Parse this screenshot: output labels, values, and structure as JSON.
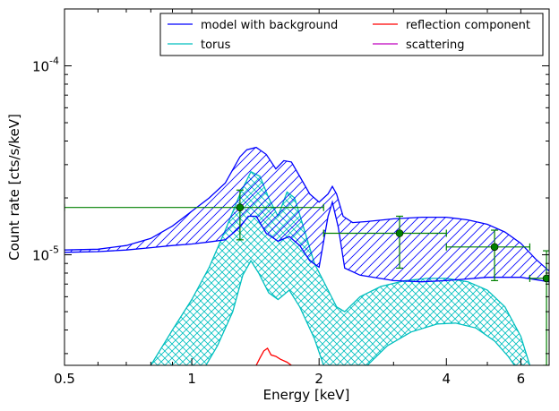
{
  "chart_data": {
    "type": "line",
    "title": "",
    "xlabel": "Energy [keV]",
    "ylabel": "Count rate [cts/s/keV]",
    "xscale": "log",
    "yscale": "log",
    "xlim": [
      0.5,
      7.0
    ],
    "ylim": [
      2.6e-06,
      0.0002
    ],
    "grid": false,
    "legend_position": "top-right",
    "x_ticks": [
      {
        "value": 0.5,
        "label": "0.5"
      },
      {
        "value": 1,
        "label": "1"
      },
      {
        "value": 2,
        "label": "2"
      },
      {
        "value": 4,
        "label": "4"
      },
      {
        "value": 6,
        "label": "6"
      }
    ],
    "y_ticks": [
      {
        "value": 1e-05,
        "base": "10",
        "exp": "-5"
      },
      {
        "value": 0.0001,
        "base": "10",
        "exp": "-4"
      }
    ],
    "series": [
      {
        "name": "model with background",
        "color": "#0000ff",
        "style": "band-hatched",
        "upper": [
          [
            0.5,
            1.06e-05
          ],
          [
            0.6,
            1.07e-05
          ],
          [
            0.7,
            1.12e-05
          ],
          [
            0.8,
            1.22e-05
          ],
          [
            0.9,
            1.42e-05
          ],
          [
            1.0,
            1.7e-05
          ],
          [
            1.1,
            2e-05
          ],
          [
            1.2,
            2.4e-05
          ],
          [
            1.3,
            3.3e-05
          ],
          [
            1.35,
            3.6e-05
          ],
          [
            1.42,
            3.7e-05
          ],
          [
            1.5,
            3.4e-05
          ],
          [
            1.58,
            2.85e-05
          ],
          [
            1.65,
            3.15e-05
          ],
          [
            1.72,
            3.1e-05
          ],
          [
            1.8,
            2.6e-05
          ],
          [
            1.9,
            2.1e-05
          ],
          [
            2.0,
            1.9e-05
          ],
          [
            2.1,
            2.1e-05
          ],
          [
            2.15,
            2.3e-05
          ],
          [
            2.2,
            2.1e-05
          ],
          [
            2.28,
            1.6e-05
          ],
          [
            2.4,
            1.48e-05
          ],
          [
            2.6,
            1.5e-05
          ],
          [
            3.0,
            1.55e-05
          ],
          [
            3.5,
            1.58e-05
          ],
          [
            4.0,
            1.58e-05
          ],
          [
            4.5,
            1.53e-05
          ],
          [
            5.0,
            1.45e-05
          ],
          [
            5.5,
            1.32e-05
          ],
          [
            6.0,
            1.15e-05
          ],
          [
            6.5,
            9.5e-06
          ],
          [
            7.0,
            8.2e-06
          ]
        ],
        "lower": [
          [
            0.5,
            1.03e-05
          ],
          [
            0.6,
            1.04e-05
          ],
          [
            0.7,
            1.06e-05
          ],
          [
            0.8,
            1.09e-05
          ],
          [
            0.9,
            1.12e-05
          ],
          [
            1.0,
            1.14e-05
          ],
          [
            1.1,
            1.17e-05
          ],
          [
            1.2,
            1.2e-05
          ],
          [
            1.3,
            1.4e-05
          ],
          [
            1.36,
            1.6e-05
          ],
          [
            1.42,
            1.6e-05
          ],
          [
            1.5,
            1.3e-05
          ],
          [
            1.6,
            1.18e-05
          ],
          [
            1.7,
            1.25e-05
          ],
          [
            1.8,
            1.12e-05
          ],
          [
            1.9,
            9.3e-06
          ],
          [
            2.0,
            8.6e-06
          ],
          [
            2.1,
            1.6e-05
          ],
          [
            2.15,
            1.9e-05
          ],
          [
            2.22,
            1.4e-05
          ],
          [
            2.3,
            8.5e-06
          ],
          [
            2.5,
            7.8e-06
          ],
          [
            3.0,
            7.3e-06
          ],
          [
            3.5,
            7.2e-06
          ],
          [
            4.0,
            7.3e-06
          ],
          [
            5.0,
            7.6e-06
          ],
          [
            6.0,
            7.6e-06
          ],
          [
            7.0,
            7.2e-06
          ]
        ]
      },
      {
        "name": "torus",
        "color": "#00bfbf",
        "style": "band-crosshatched",
        "upper": [
          [
            0.8,
            2.6e-06
          ],
          [
            0.9,
            4e-06
          ],
          [
            1.0,
            5.8e-06
          ],
          [
            1.1,
            8.6e-06
          ],
          [
            1.2,
            1.35e-05
          ],
          [
            1.3,
            2.1e-05
          ],
          [
            1.38,
            2.75e-05
          ],
          [
            1.45,
            2.6e-05
          ],
          [
            1.52,
            2e-05
          ],
          [
            1.6,
            1.6e-05
          ],
          [
            1.68,
            2.15e-05
          ],
          [
            1.75,
            2e-05
          ],
          [
            1.82,
            1.5e-05
          ],
          [
            1.95,
            9e-06
          ],
          [
            2.1,
            6.5e-06
          ],
          [
            2.2,
            5.3e-06
          ],
          [
            2.3,
            5e-06
          ],
          [
            2.5,
            6e-06
          ],
          [
            2.8,
            6.8e-06
          ],
          [
            3.2,
            7.3e-06
          ],
          [
            3.6,
            7.5e-06
          ],
          [
            4.0,
            7.5e-06
          ],
          [
            4.5,
            7.2e-06
          ],
          [
            5.0,
            6.5e-06
          ],
          [
            5.5,
            5.3e-06
          ],
          [
            6.0,
            3.7e-06
          ],
          [
            6.3,
            2.6e-06
          ]
        ],
        "lower": [
          [
            1.08,
            2.6e-06
          ],
          [
            1.15,
            3.3e-06
          ],
          [
            1.25,
            5e-06
          ],
          [
            1.32,
            7.8e-06
          ],
          [
            1.38,
            9.3e-06
          ],
          [
            1.44,
            8e-06
          ],
          [
            1.52,
            6.3e-06
          ],
          [
            1.6,
            5.8e-06
          ],
          [
            1.7,
            6.5e-06
          ],
          [
            1.8,
            5.3e-06
          ],
          [
            1.95,
            3.6e-06
          ],
          [
            2.05,
            2.6e-06
          ],
          [
            2.6,
            2.6e-06
          ],
          [
            2.9,
            3.3e-06
          ],
          [
            3.3,
            3.9e-06
          ],
          [
            3.8,
            4.3e-06
          ],
          [
            4.2,
            4.35e-06
          ],
          [
            4.7,
            4.1e-06
          ],
          [
            5.2,
            3.5e-06
          ],
          [
            5.6,
            2.9e-06
          ],
          [
            5.8,
            2.6e-06
          ]
        ]
      },
      {
        "name": "reflection component",
        "color": "#ff0000",
        "style": "line",
        "points": [
          [
            1.42,
            2.6e-06
          ],
          [
            1.45,
            2.85e-06
          ],
          [
            1.48,
            3.1e-06
          ],
          [
            1.51,
            3.2e-06
          ],
          [
            1.54,
            2.95e-06
          ],
          [
            1.58,
            2.9e-06
          ],
          [
            1.62,
            2.8e-06
          ],
          [
            1.68,
            2.7e-06
          ],
          [
            1.72,
            2.6e-06
          ]
        ]
      },
      {
        "name": "scattering",
        "color": "#bf00bf",
        "style": "line",
        "points": []
      }
    ],
    "data_points": {
      "color": "#008000",
      "points": [
        {
          "x": 1.3,
          "y": 1.78e-05,
          "xlo": 0.5,
          "xhi": 2.05,
          "ylo": 1.2e-05,
          "yhi": 2.2e-05
        },
        {
          "x": 3.1,
          "y": 1.3e-05,
          "xlo": 2.05,
          "xhi": 4.0,
          "ylo": 8.5e-06,
          "yhi": 1.6e-05
        },
        {
          "x": 5.2,
          "y": 1.1e-05,
          "xlo": 4.0,
          "xhi": 6.3,
          "ylo": 7.3e-06,
          "yhi": 1.35e-05
        },
        {
          "x": 6.9,
          "y": 7.5e-06,
          "xlo": 6.3,
          "xhi": 7.0,
          "ylo": 2.6e-06,
          "yhi": 1.05e-05
        }
      ]
    }
  }
}
